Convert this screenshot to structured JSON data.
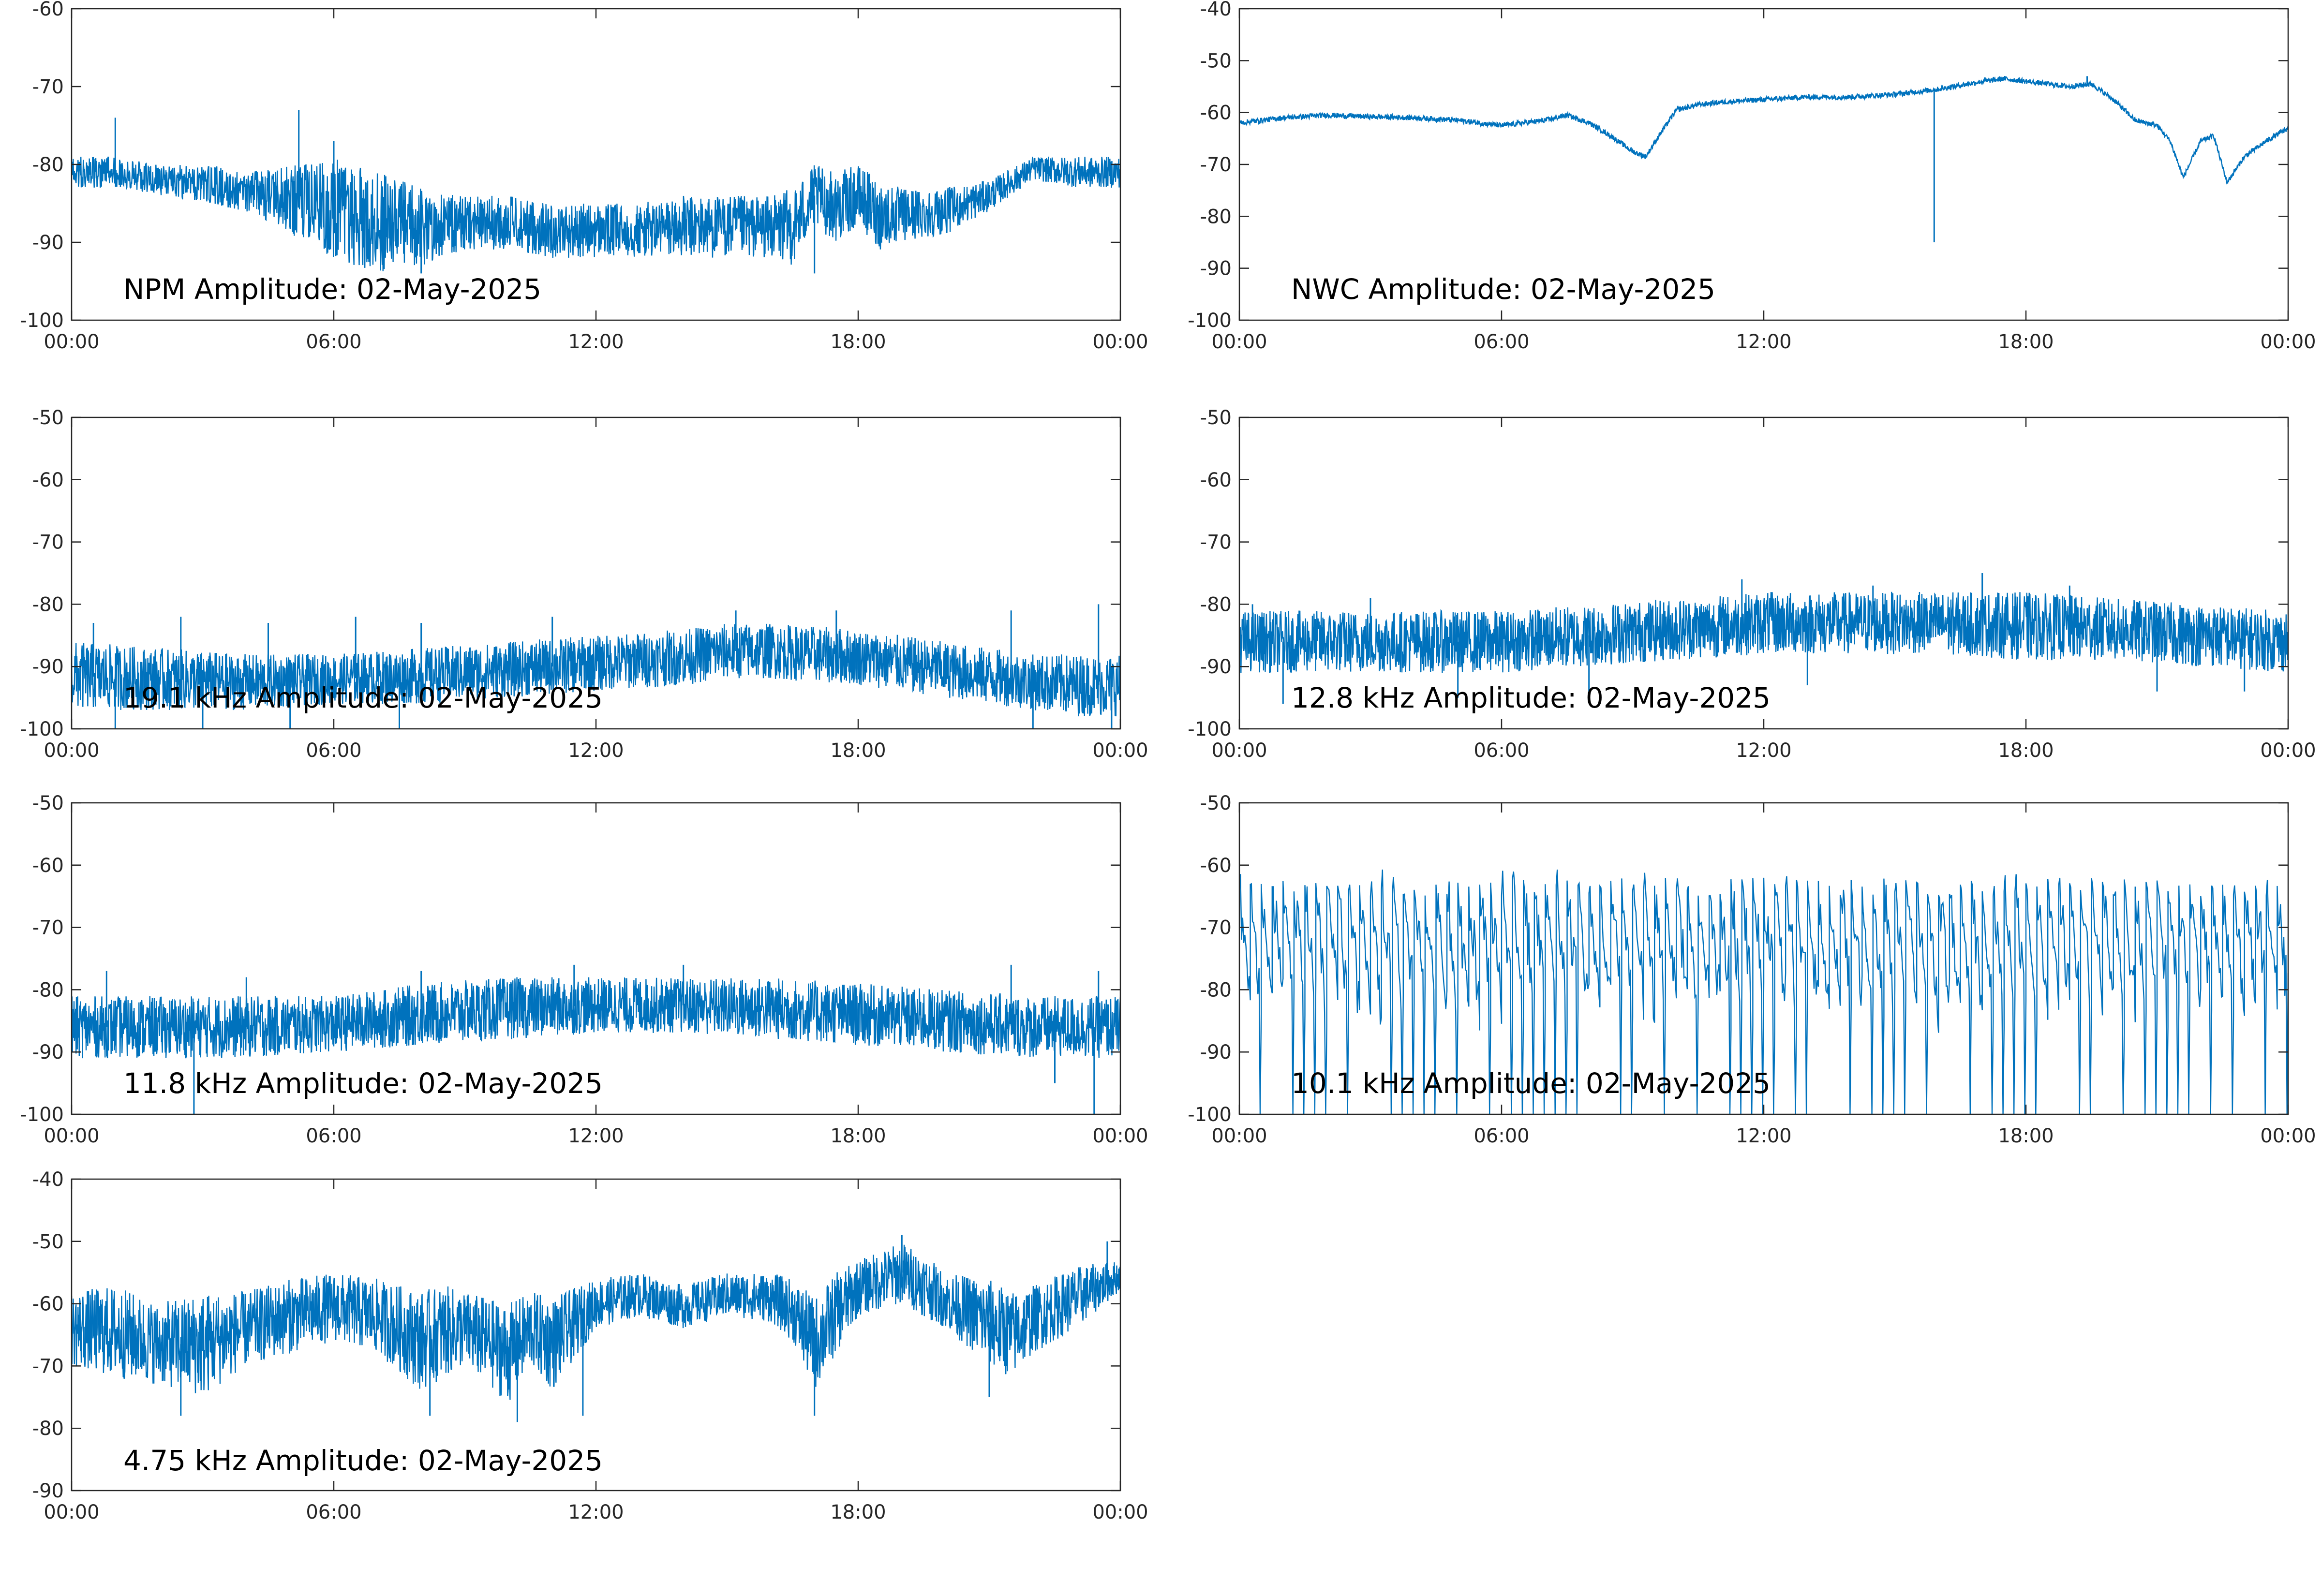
{
  "figure": {
    "line_color": "#0072BD",
    "axis_color": "#262626",
    "background": "#ffffff"
  },
  "chart_data": [
    {
      "type": "line",
      "title": "NPM Amplitude: 02-May-2025",
      "xlabel": "",
      "ylabel": "",
      "xlim": [
        "00:00",
        "00:00"
      ],
      "ylim": [
        -100,
        -60
      ],
      "x_ticks": [
        "00:00",
        "06:00",
        "12:00",
        "18:00",
        "00:00"
      ],
      "y_ticks": [
        -60,
        -70,
        -80,
        -90,
        -100
      ],
      "grid": false,
      "series": [
        {
          "x_hours": [
            0,
            1,
            2,
            3,
            4,
            5,
            6,
            7,
            8,
            9,
            10,
            11,
            12,
            13,
            14,
            15,
            16,
            16.5,
            17,
            17.5,
            18,
            18.5,
            19,
            20,
            21,
            22,
            23,
            24
          ],
          "upper": [
            -79,
            -79,
            -80,
            -80,
            -81,
            -80,
            -79,
            -81,
            -83,
            -84,
            -84,
            -85,
            -85,
            -85,
            -84,
            -84,
            -84,
            -83,
            -80,
            -81,
            -80,
            -82,
            -83,
            -83,
            -82,
            -79,
            -79,
            -79
          ],
          "lower": [
            -83,
            -83,
            -84,
            -85,
            -86,
            -89,
            -92,
            -94,
            -93,
            -91,
            -91,
            -92,
            -92,
            -92,
            -92,
            -92,
            -92,
            -93,
            -88,
            -90,
            -88,
            -91,
            -90,
            -89,
            -86,
            -82,
            -83,
            -83
          ],
          "spikes": [
            [
              1,
              -74
            ],
            [
              5.2,
              -73
            ],
            [
              6,
              -77
            ],
            [
              8,
              -94
            ],
            [
              17,
              -94
            ]
          ]
        }
      ]
    },
    {
      "type": "line",
      "title": "NWC Amplitude: 02-May-2025",
      "xlabel": "",
      "ylabel": "",
      "xlim": [
        "00:00",
        "00:00"
      ],
      "ylim": [
        -100,
        -40
      ],
      "x_ticks": [
        "00:00",
        "06:00",
        "12:00",
        "18:00",
        "00:00"
      ],
      "y_ticks": [
        -40,
        -50,
        -60,
        -70,
        -80,
        -90,
        -100
      ],
      "grid": false,
      "series": [
        {
          "x_hours": [
            0,
            1,
            2,
            3,
            4,
            5,
            6,
            7,
            7.5,
            8,
            8.5,
            9,
            9.3,
            9.6,
            10,
            10.5,
            11,
            12,
            13,
            14,
            15,
            16,
            17,
            17.5,
            18,
            19,
            19.5,
            20,
            20.5,
            21,
            21.3,
            21.6,
            22,
            22.3,
            22.6,
            23,
            23.5,
            24
          ],
          "upper": [
            -61.5,
            -60.5,
            -60,
            -60.3,
            -60.5,
            -61,
            -62,
            -61,
            -60,
            -61.5,
            -64,
            -67,
            -68,
            -64,
            -59,
            -58,
            -57.5,
            -57,
            -56.5,
            -56.5,
            -56,
            -55,
            -53.5,
            -53,
            -53.5,
            -54.5,
            -54,
            -57,
            -61,
            -62,
            -65,
            -72,
            -65,
            -64,
            -73,
            -68,
            -65,
            -62.5
          ],
          "lower": [
            -62.5,
            -61.5,
            -61,
            -61.3,
            -61.5,
            -62,
            -63,
            -62,
            -61,
            -62.5,
            -65,
            -68,
            -69,
            -65,
            -60,
            -59,
            -58.5,
            -58,
            -57.5,
            -57.5,
            -57,
            -56,
            -54.5,
            -54,
            -54.5,
            -55.5,
            -55,
            -58,
            -62,
            -63,
            -66,
            -73,
            -66,
            -65,
            -74,
            -69,
            -66,
            -63.5
          ],
          "spikes": [
            [
              15.9,
              -85
            ],
            [
              19.4,
              -53
            ]
          ]
        }
      ]
    },
    {
      "type": "line",
      "title": "19.1 kHz Amplitude: 02-May-2025",
      "xlabel": "",
      "ylabel": "",
      "xlim": [
        "00:00",
        "00:00"
      ],
      "ylim": [
        -100,
        -50
      ],
      "x_ticks": [
        "00:00",
        "06:00",
        "12:00",
        "18:00",
        "00:00"
      ],
      "y_ticks": [
        -50,
        -60,
        -70,
        -80,
        -90,
        -100
      ],
      "grid": false,
      "series": [
        {
          "x_hours": [
            0,
            2,
            4,
            6,
            8,
            10,
            12,
            14,
            15,
            16,
            18,
            20,
            22,
            23,
            24
          ],
          "upper": [
            -86,
            -87,
            -88,
            -88,
            -87,
            -86,
            -85,
            -84,
            -83,
            -83,
            -84,
            -86,
            -88,
            -88,
            -88
          ],
          "lower": [
            -97,
            -97,
            -97,
            -96,
            -96,
            -95,
            -94,
            -93,
            -92,
            -92,
            -93,
            -95,
            -97,
            -98,
            -98
          ],
          "spikes": [
            [
              0.5,
              -83
            ],
            [
              2.5,
              -82
            ],
            [
              4.5,
              -83
            ],
            [
              6.5,
              -82
            ],
            [
              8,
              -83
            ],
            [
              11,
              -82
            ],
            [
              15.2,
              -81
            ],
            [
              17.5,
              -81
            ],
            [
              21.5,
              -81
            ],
            [
              23.5,
              -80
            ],
            [
              1,
              -100
            ],
            [
              3,
              -100
            ],
            [
              5,
              -100
            ],
            [
              7.5,
              -100
            ],
            [
              22,
              -100
            ],
            [
              23.8,
              -100
            ]
          ]
        }
      ]
    },
    {
      "type": "line",
      "title": "12.8 kHz Amplitude: 02-May-2025",
      "xlabel": "",
      "ylabel": "",
      "xlim": [
        "00:00",
        "00:00"
      ],
      "ylim": [
        -100,
        -50
      ],
      "x_ticks": [
        "00:00",
        "06:00",
        "12:00",
        "18:00",
        "00:00"
      ],
      "y_ticks": [
        -50,
        -60,
        -70,
        -80,
        -90,
        -100
      ],
      "grid": false,
      "series": [
        {
          "x_hours": [
            0,
            2,
            4,
            6,
            8,
            10,
            12,
            14,
            16,
            18,
            20,
            22,
            24
          ],
          "upper": [
            -81,
            -81,
            -81,
            -81,
            -80,
            -79,
            -78,
            -78,
            -78,
            -78,
            -79,
            -80,
            -81
          ],
          "lower": [
            -91,
            -91,
            -91,
            -91,
            -90,
            -89,
            -88,
            -88,
            -88,
            -89,
            -89,
            -90,
            -91
          ],
          "spikes": [
            [
              0.3,
              -80
            ],
            [
              3,
              -79
            ],
            [
              11.5,
              -76
            ],
            [
              14.5,
              -77
            ],
            [
              17,
              -75
            ],
            [
              19,
              -77
            ],
            [
              1,
              -96
            ],
            [
              5,
              -95
            ],
            [
              8,
              -94
            ],
            [
              13,
              -93
            ],
            [
              21,
              -94
            ],
            [
              23,
              -94
            ]
          ]
        }
      ]
    },
    {
      "type": "line",
      "title": "11.8 kHz Amplitude: 02-May-2025",
      "xlabel": "",
      "ylabel": "",
      "xlim": [
        "00:00",
        "00:00"
      ],
      "ylim": [
        -100,
        -50
      ],
      "x_ticks": [
        "00:00",
        "06:00",
        "12:00",
        "18:00",
        "00:00"
      ],
      "y_ticks": [
        -50,
        -60,
        -70,
        -80,
        -90,
        -100
      ],
      "grid": false,
      "series": [
        {
          "x_hours": [
            0,
            2,
            4,
            6,
            8,
            10,
            12,
            14,
            16,
            18,
            20,
            22,
            24
          ],
          "upper": [
            -81,
            -81,
            -81,
            -81,
            -79,
            -78,
            -78,
            -78,
            -78,
            -79,
            -80,
            -81,
            -81
          ],
          "lower": [
            -91,
            -91,
            -91,
            -90,
            -89,
            -88,
            -87,
            -87,
            -88,
            -89,
            -90,
            -91,
            -91
          ],
          "spikes": [
            [
              0.8,
              -77
            ],
            [
              4,
              -78
            ],
            [
              8,
              -77
            ],
            [
              11.5,
              -76
            ],
            [
              14,
              -76
            ],
            [
              21.5,
              -76
            ],
            [
              23.5,
              -77
            ],
            [
              2.8,
              -100
            ],
            [
              22.5,
              -95
            ],
            [
              23.4,
              -100
            ]
          ]
        }
      ]
    },
    {
      "type": "line",
      "title": "10.1 kHz Amplitude: 02-May-2025",
      "xlabel": "",
      "ylabel": "",
      "xlim": [
        "00:00",
        "00:00"
      ],
      "ylim": [
        -100,
        -50
      ],
      "x_ticks": [
        "00:00",
        "06:00",
        "12:00",
        "18:00",
        "00:00"
      ],
      "y_ticks": [
        -50,
        -60,
        -70,
        -80,
        -90,
        -100
      ],
      "grid": false,
      "series": [
        {
          "pattern": "periodic-pulses",
          "pulse_top": -62,
          "pulse_base": -80,
          "pulse_floor": -100,
          "pulse_count": 96
        }
      ]
    },
    {
      "type": "line",
      "title": "4.75 kHz Amplitude: 02-May-2025",
      "xlabel": "",
      "ylabel": "",
      "xlim": [
        "00:00",
        "00:00"
      ],
      "ylim": [
        -90,
        -40
      ],
      "x_ticks": [
        "00:00",
        "06:00",
        "12:00",
        "18:00",
        "00:00"
      ],
      "y_ticks": [
        -40,
        -50,
        -60,
        -70,
        -80,
        -90
      ],
      "grid": false,
      "series": [
        {
          "x_hours": [
            0,
            1,
            2,
            3,
            4,
            5,
            6,
            7,
            8,
            8.5,
            9,
            10,
            10.5,
            11,
            12,
            13,
            14,
            15,
            16,
            16.5,
            17,
            17.5,
            18,
            19,
            19.5,
            20,
            21,
            21.5,
            22,
            23,
            24
          ],
          "upper": [
            -58,
            -57,
            -60,
            -58,
            -58,
            -56,
            -55,
            -56,
            -58,
            -57,
            -58,
            -60,
            -58,
            -59,
            -56,
            -55,
            -57,
            -55,
            -55,
            -56,
            -59,
            -55,
            -53,
            -50,
            -52,
            -55,
            -56,
            -58,
            -57,
            -54,
            -53
          ],
          "lower": [
            -70,
            -72,
            -73,
            -75,
            -70,
            -68,
            -66,
            -68,
            -74,
            -72,
            -70,
            -76,
            -70,
            -74,
            -64,
            -62,
            -64,
            -62,
            -63,
            -66,
            -74,
            -68,
            -62,
            -60,
            -62,
            -64,
            -70,
            -72,
            -68,
            -64,
            -58
          ],
          "spikes": [
            [
              2.5,
              -78
            ],
            [
              8.2,
              -78
            ],
            [
              10.2,
              -79
            ],
            [
              11.7,
              -78
            ],
            [
              17,
              -78
            ],
            [
              21,
              -75
            ],
            [
              19,
              -49
            ],
            [
              23.7,
              -50
            ]
          ]
        }
      ]
    }
  ]
}
